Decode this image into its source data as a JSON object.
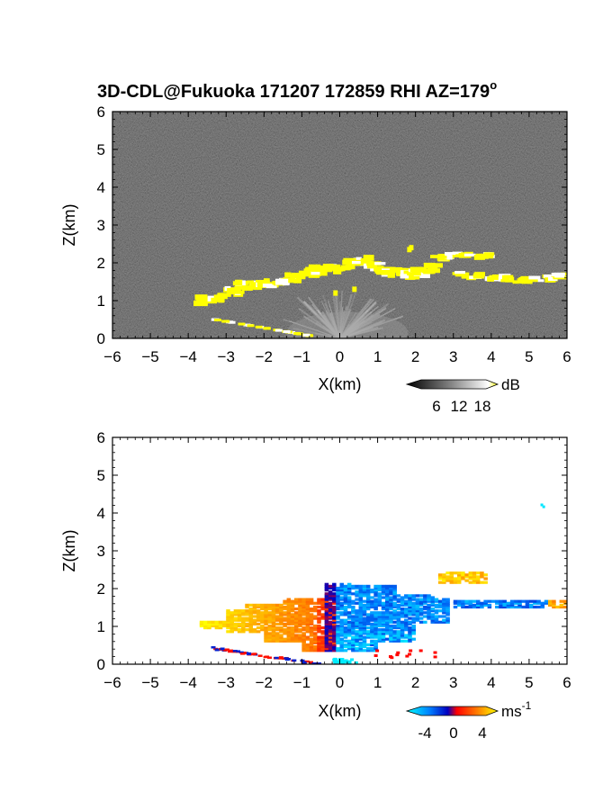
{
  "figure": {
    "title_main": "3D-CDL@Fukuoka 171207 172859 RHI AZ=179",
    "title_deg": "o"
  },
  "chart_data": [
    {
      "type": "heatmap",
      "id": "reflectivity",
      "xlabel": "X(km)",
      "ylabel": "Z(km)",
      "xlim": [
        -6,
        6
      ],
      "ylim": [
        0,
        6
      ],
      "xticks": [
        -6,
        -5,
        -4,
        -3,
        -2,
        -1,
        0,
        1,
        2,
        3,
        4,
        5,
        6
      ],
      "yticks": [
        0,
        1,
        2,
        3,
        4,
        5,
        6
      ],
      "background": "noise, dark gray",
      "colorbar": {
        "unit": "dB",
        "ticks": [
          "6",
          "12",
          "18"
        ],
        "range": [
          0,
          21
        ],
        "colors": [
          "#000000",
          "#ffffff",
          "#ffff00"
        ]
      },
      "features": [
        {
          "name": "cloud layer (saturated, yellow)",
          "x": [
            -2.8,
            1.6
          ],
          "z": [
            1.2,
            2.1
          ]
        },
        {
          "name": "cloud layer east segment",
          "x": [
            2.6,
            6.0
          ],
          "z": [
            1.5,
            2.3
          ]
        },
        {
          "name": "low fragments near ground",
          "x": [
            -3.3,
            -0.7
          ],
          "z": [
            0.0,
            0.5
          ]
        },
        {
          "name": "near-range clutter fan",
          "x": [
            -2.0,
            2.0
          ],
          "z": [
            0.0,
            1.2
          ]
        }
      ],
      "colors": {
        "saturated": "#ffff00",
        "bright": "#ffffff",
        "background": "#2a2a2a"
      }
    },
    {
      "type": "heatmap",
      "id": "doppler_velocity",
      "xlabel": "X(km)",
      "ylabel": "Z(km)",
      "xlim": [
        -6,
        6
      ],
      "ylim": [
        0,
        6
      ],
      "xticks": [
        -6,
        -5,
        -4,
        -3,
        -2,
        -1,
        0,
        1,
        2,
        3,
        4,
        5,
        6
      ],
      "yticks": [
        0,
        1,
        2,
        3,
        4,
        5,
        6
      ],
      "background": "white (no data)",
      "colorbar": {
        "unit": "ms",
        "unit_exp": "-1",
        "ticks": [
          "-4",
          "0",
          "4"
        ],
        "range": [
          -5,
          5
        ],
        "colors": [
          "#00ffff",
          "#0066ff",
          "#0000cc",
          "#ff0000",
          "#ff7700",
          "#ffff00"
        ]
      },
      "features": [
        {
          "name": "positive velocity (west)",
          "x": [
            -3.7,
            -0.1
          ],
          "z": [
            0.6,
            1.7
          ],
          "v": 3.5
        },
        {
          "name": "negative velocity (east)",
          "x": [
            -0.3,
            2.9
          ],
          "z": [
            0.4,
            2.2
          ],
          "v": -3.5
        },
        {
          "name": "east layer, positive",
          "x": [
            2.6,
            3.8
          ],
          "z": [
            2.2,
            2.4
          ],
          "v": 3.5
        },
        {
          "name": "east layer, mixed",
          "x": [
            3.0,
            6.0
          ],
          "z": [
            1.5,
            1.7
          ],
          "v": -2.0
        },
        {
          "name": "isolated echo",
          "x": [
            5.3,
            5.4
          ],
          "z": [
            4.1,
            4.3
          ],
          "v": -4.5
        }
      ],
      "colors": {
        "positive": "#ff7a00",
        "negative": "#1040ff",
        "near_zero": "#ff0000"
      }
    }
  ]
}
